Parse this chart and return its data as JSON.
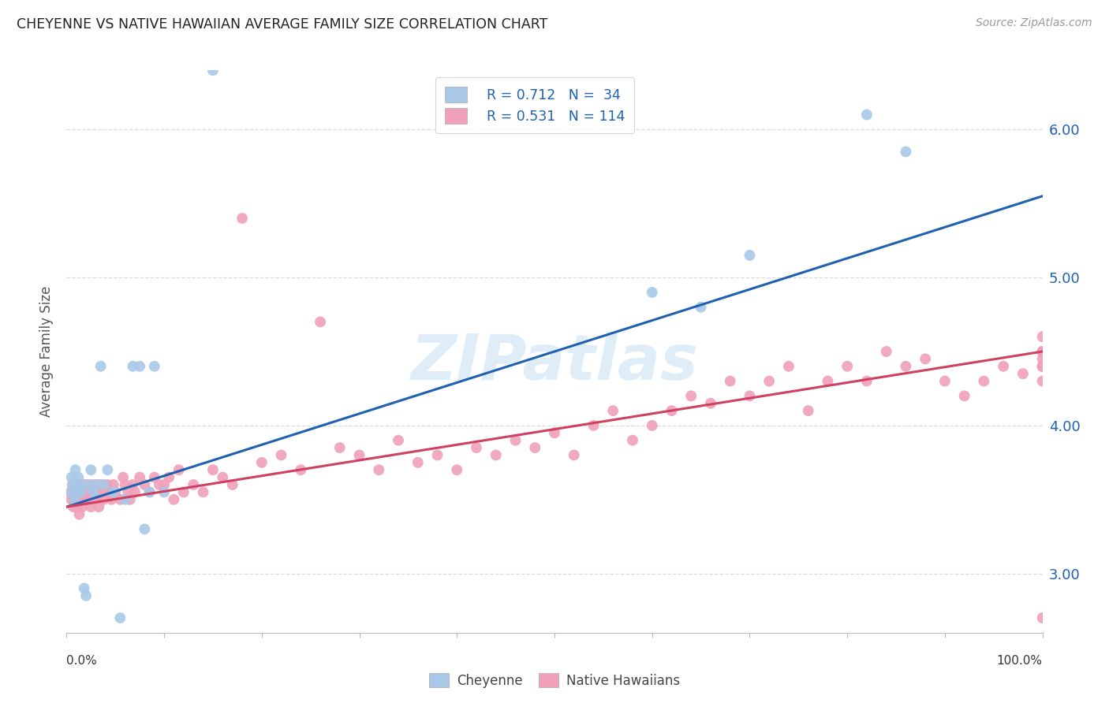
{
  "title": "CHEYENNE VS NATIVE HAWAIIAN AVERAGE FAMILY SIZE CORRELATION CHART",
  "source": "Source: ZipAtlas.com",
  "ylabel": "Average Family Size",
  "yticks": [
    3.0,
    4.0,
    5.0,
    6.0
  ],
  "xlim": [
    0.0,
    1.0
  ],
  "ylim": [
    2.6,
    6.4
  ],
  "bg_color": "#ffffff",
  "grid_color": "#d0d0d0",
  "blue_color": "#a8c8e8",
  "pink_color": "#f0a0b8",
  "blue_line_color": "#2060b0",
  "pink_line_color": "#d04060",
  "blue_tick_color": "#2060b0",
  "legend_label1": "Cheyenne",
  "legend_label2": "Native Hawaiians",
  "watermark": "ZIPatlas",
  "cheyenne_x": [
    0.005,
    0.005,
    0.007,
    0.008,
    0.009,
    0.01,
    0.01,
    0.012,
    0.013,
    0.015,
    0.018,
    0.02,
    0.022,
    0.025,
    0.028,
    0.03,
    0.035,
    0.038,
    0.042,
    0.048,
    0.055,
    0.06,
    0.068,
    0.075,
    0.08,
    0.085,
    0.09,
    0.1,
    0.15,
    0.6,
    0.65,
    0.7,
    0.82,
    0.86
  ],
  "cheyenne_y": [
    3.55,
    3.65,
    3.6,
    3.5,
    3.7,
    3.6,
    3.55,
    3.65,
    3.6,
    3.55,
    2.9,
    2.85,
    3.6,
    3.7,
    3.55,
    3.6,
    4.4,
    3.6,
    3.7,
    3.55,
    2.7,
    3.5,
    4.4,
    4.4,
    3.3,
    3.55,
    4.4,
    3.55,
    6.4,
    4.9,
    4.8,
    5.15,
    6.1,
    5.85
  ],
  "native_x": [
    0.004,
    0.005,
    0.006,
    0.007,
    0.008,
    0.009,
    0.01,
    0.01,
    0.011,
    0.012,
    0.013,
    0.014,
    0.015,
    0.015,
    0.016,
    0.017,
    0.018,
    0.019,
    0.02,
    0.02,
    0.022,
    0.023,
    0.024,
    0.025,
    0.026,
    0.027,
    0.028,
    0.03,
    0.031,
    0.032,
    0.033,
    0.035,
    0.036,
    0.038,
    0.04,
    0.042,
    0.044,
    0.046,
    0.048,
    0.05,
    0.055,
    0.058,
    0.06,
    0.063,
    0.065,
    0.068,
    0.07,
    0.075,
    0.08,
    0.085,
    0.09,
    0.095,
    0.1,
    0.105,
    0.11,
    0.115,
    0.12,
    0.13,
    0.14,
    0.15,
    0.16,
    0.17,
    0.18,
    0.2,
    0.22,
    0.24,
    0.26,
    0.28,
    0.3,
    0.32,
    0.34,
    0.36,
    0.38,
    0.4,
    0.42,
    0.44,
    0.46,
    0.48,
    0.5,
    0.52,
    0.54,
    0.56,
    0.58,
    0.6,
    0.62,
    0.64,
    0.66,
    0.68,
    0.7,
    0.72,
    0.74,
    0.76,
    0.78,
    0.8,
    0.82,
    0.84,
    0.86,
    0.88,
    0.9,
    0.92,
    0.94,
    0.96,
    0.98,
    1.0,
    1.0,
    1.0,
    1.0,
    1.0,
    1.0,
    1.0,
    1.0,
    1.0,
    1.0,
    1.0
  ],
  "native_y": [
    3.55,
    3.5,
    3.6,
    3.45,
    3.5,
    3.55,
    3.5,
    3.6,
    3.45,
    3.55,
    3.4,
    3.6,
    3.5,
    3.55,
    3.45,
    3.6,
    3.5,
    3.55,
    3.5,
    3.6,
    3.55,
    3.5,
    3.6,
    3.45,
    3.55,
    3.5,
    3.6,
    3.55,
    3.5,
    3.6,
    3.45,
    3.6,
    3.55,
    3.5,
    3.55,
    3.6,
    3.55,
    3.5,
    3.6,
    3.55,
    3.5,
    3.65,
    3.6,
    3.55,
    3.5,
    3.6,
    3.55,
    3.65,
    3.6,
    3.55,
    3.65,
    3.6,
    3.6,
    3.65,
    3.5,
    3.7,
    3.55,
    3.6,
    3.55,
    3.7,
    3.65,
    3.6,
    5.4,
    3.75,
    3.8,
    3.7,
    4.7,
    3.85,
    3.8,
    3.7,
    3.9,
    3.75,
    3.8,
    3.7,
    3.85,
    3.8,
    3.9,
    3.85,
    3.95,
    3.8,
    4.0,
    4.1,
    3.9,
    4.0,
    4.1,
    4.2,
    4.15,
    4.3,
    4.2,
    4.3,
    4.4,
    4.1,
    4.3,
    4.4,
    4.3,
    4.5,
    4.4,
    4.45,
    4.3,
    4.2,
    4.3,
    4.4,
    4.35,
    4.5,
    4.4,
    4.5,
    4.4,
    4.3,
    4.5,
    4.4,
    4.45,
    4.5,
    4.6,
    2.7
  ],
  "blue_line_x0": 0.0,
  "blue_line_y0": 3.45,
  "blue_line_x1": 1.0,
  "blue_line_y1": 5.55,
  "pink_line_x0": 0.0,
  "pink_line_y0": 3.45,
  "pink_line_x1": 1.0,
  "pink_line_y1": 4.5
}
